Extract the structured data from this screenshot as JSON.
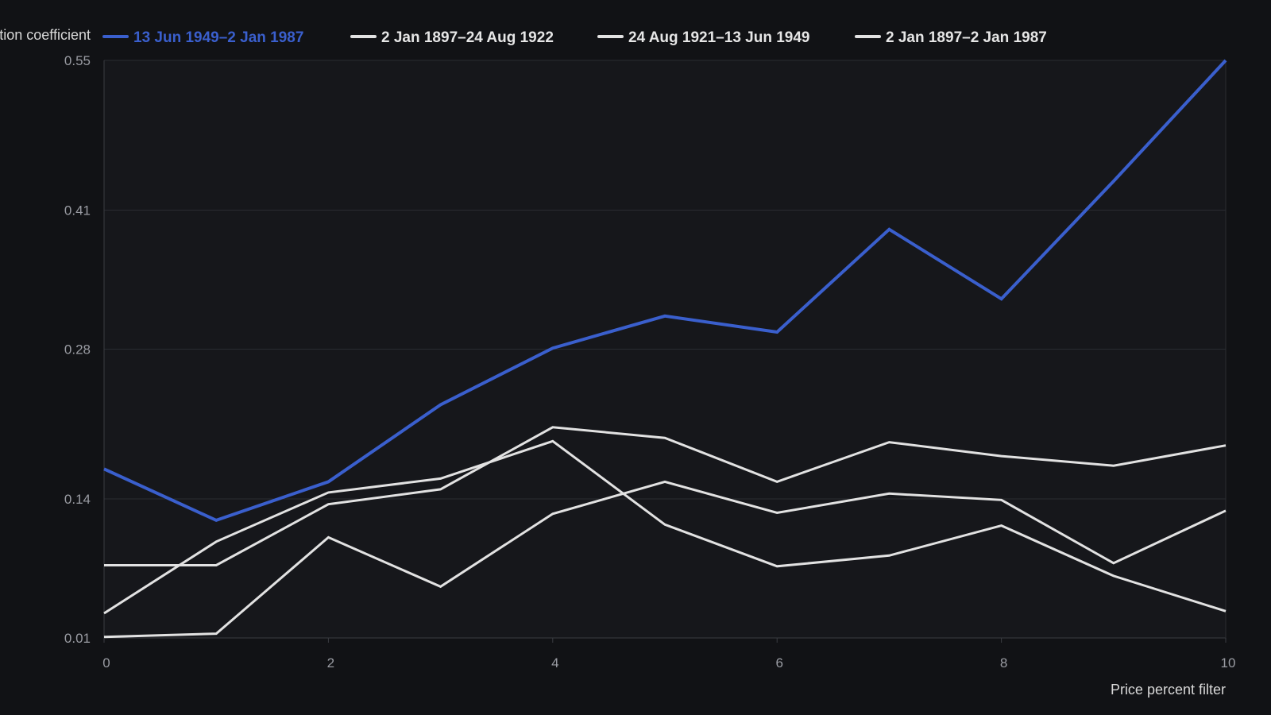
{
  "chart_data": {
    "type": "line",
    "xlabel": "Price percent filter",
    "ylabel": "Correlation coefficient",
    "xlim": [
      0,
      10
    ],
    "ylim": [
      0.01,
      0.55
    ],
    "x_ticks": [
      0,
      2,
      4,
      6,
      8,
      10
    ],
    "x_tick_labels": [
      "0",
      "2",
      "4",
      "6",
      "8",
      "10"
    ],
    "y_ticks": [
      0.01,
      0.14,
      0.28,
      0.41,
      0.55
    ],
    "y_tick_labels": [
      "0.01",
      "0.14",
      "0.28",
      "0.41",
      "0.55"
    ],
    "grid": "horizontal",
    "legend_position": "top",
    "x": [
      0,
      1,
      2,
      3,
      4,
      5,
      6,
      7,
      8,
      9,
      10
    ],
    "series": [
      {
        "name": "13 Jun 1949–2 Jan 1987",
        "color": "#3a5fcd",
        "highlight": true,
        "values": [
          0.168,
          0.12,
          0.156,
          0.228,
          0.281,
          0.311,
          0.296,
          0.392,
          0.327,
          0.437,
          0.55
        ]
      },
      {
        "name": "2 Jan 1897–24 Aug 1922",
        "color": "#e2e2e2",
        "values": [
          0.033,
          0.1,
          0.146,
          0.159,
          0.194,
          0.116,
          0.077,
          0.087,
          0.115,
          0.068,
          0.035
        ]
      },
      {
        "name": "24 Aug 1921–13 Jun 1949",
        "color": "#e2e2e2",
        "values": [
          0.011,
          0.014,
          0.104,
          0.058,
          0.126,
          0.156,
          0.127,
          0.145,
          0.139,
          0.08,
          0.129
        ]
      },
      {
        "name": "2 Jan 1897–2 Jan 1987",
        "color": "#e2e2e2",
        "values": [
          0.078,
          0.078,
          0.135,
          0.149,
          0.207,
          0.197,
          0.156,
          0.193,
          0.18,
          0.171,
          0.19
        ]
      }
    ]
  },
  "colors": {
    "background": "#111215",
    "plot_background": "#16171b",
    "grid": "#2a2c31",
    "axis": "#3a3c42",
    "tick_text": "#9a9ca3",
    "highlight": "#3a5fcd",
    "muted_line": "#e2e2e2"
  }
}
